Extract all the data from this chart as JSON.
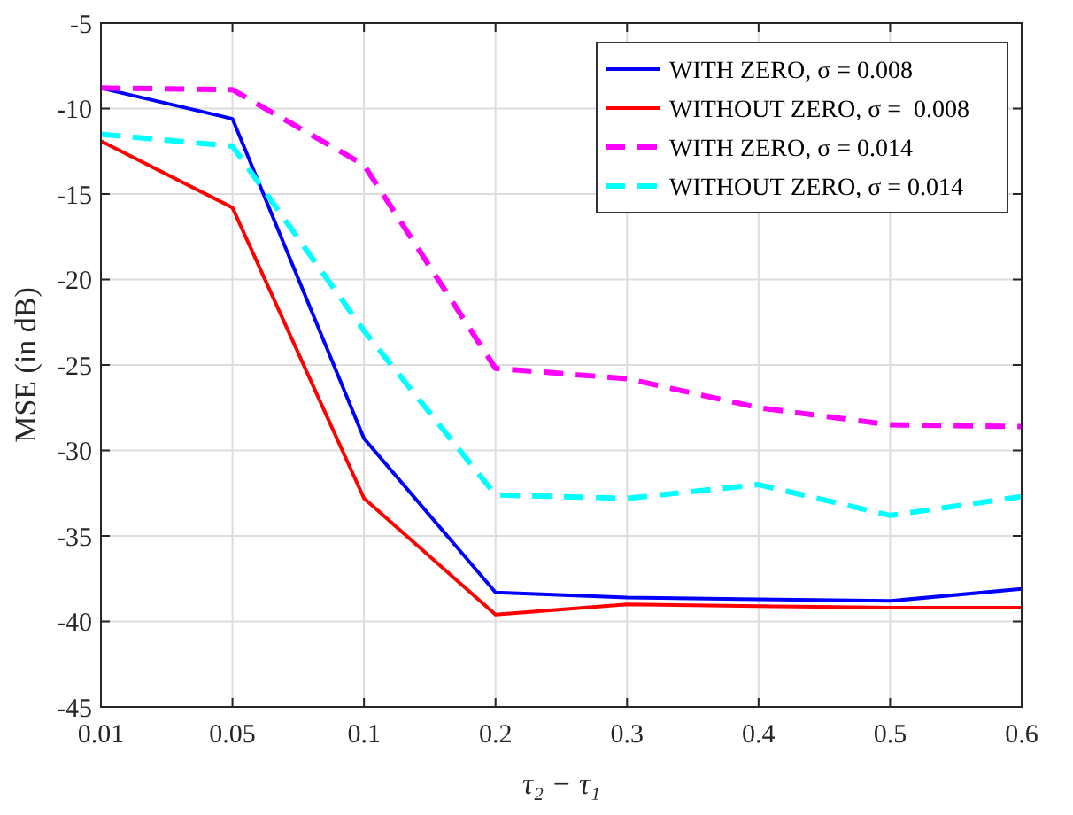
{
  "chart_data": {
    "type": "line",
    "xlabel": "τ₂ − τ₁",
    "ylabel": "MSE (in dB)",
    "categories": [
      "0.01",
      "0.05",
      "0.1",
      "0.2",
      "0.3",
      "0.4",
      "0.5",
      "0.6"
    ],
    "ylim": [
      -45,
      -5
    ],
    "yticks": [
      -45,
      -40,
      -35,
      -30,
      -25,
      -20,
      -15,
      -10,
      -5
    ],
    "grid": true,
    "legend": "top right",
    "marker": "none",
    "series": [
      {
        "name": "WITH ZERO, σ = 0.008",
        "color": "#0000ff",
        "line_style": "solid",
        "values": [
          -8.8,
          -10.6,
          -29.3,
          -38.3,
          -38.6,
          -38.7,
          -38.8,
          -38.1
        ]
      },
      {
        "name": "WITHOUT ZERO, σ =  0.008",
        "color": "#ff0000",
        "line_style": "solid",
        "values": [
          -11.9,
          -15.8,
          -32.8,
          -39.6,
          -39.0,
          -39.1,
          -39.2,
          -39.2
        ]
      },
      {
        "name": "WITH ZERO, σ = 0.014",
        "color": "#ff00ff",
        "line_style": "dashed",
        "values": [
          -8.8,
          -8.9,
          -13.3,
          -25.2,
          -25.8,
          -27.5,
          -28.5,
          -28.6
        ]
      },
      {
        "name": "WITHOUT ZERO, σ = 0.014",
        "color": "#00ffff",
        "line_style": "dashed",
        "values": [
          -11.5,
          -12.2,
          -23.0,
          -32.6,
          -32.8,
          -32.0,
          -33.8,
          -32.7
        ]
      }
    ]
  }
}
